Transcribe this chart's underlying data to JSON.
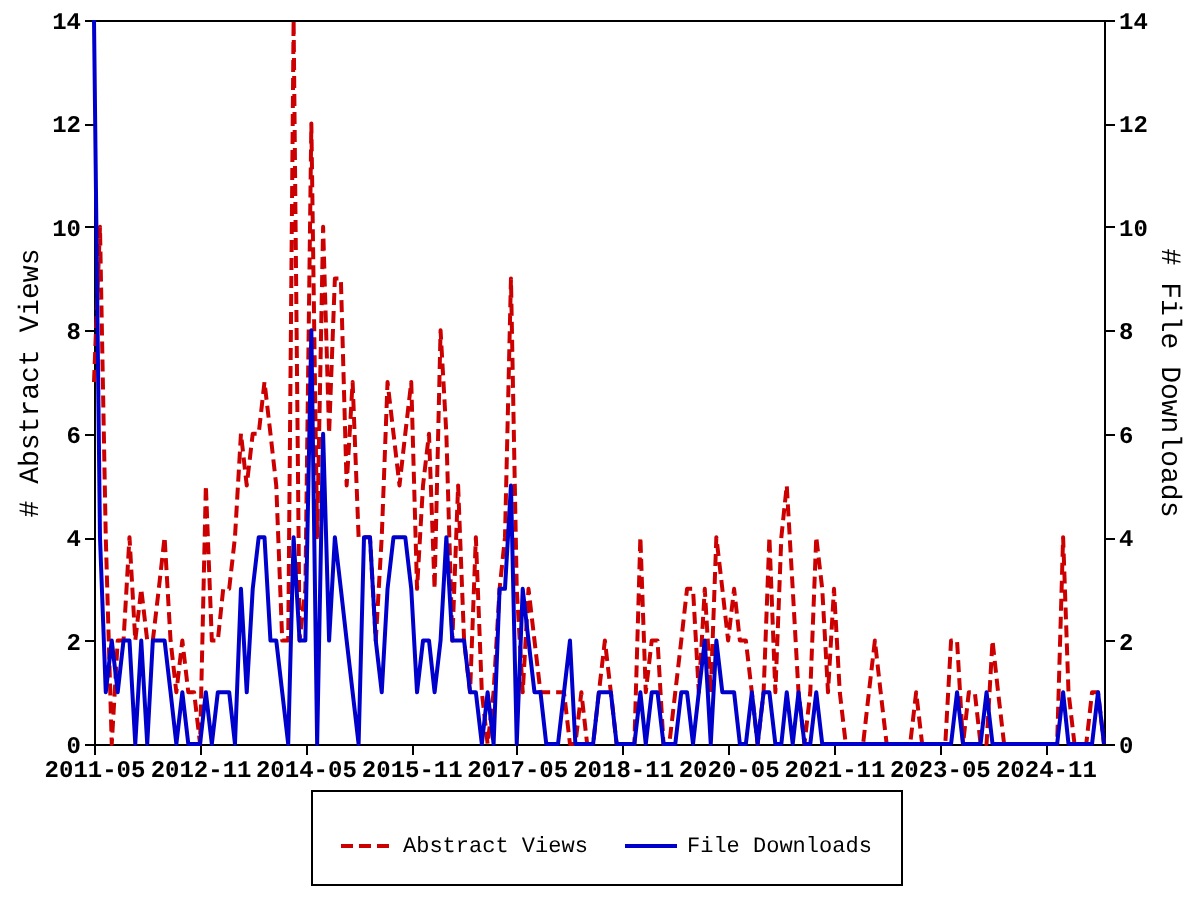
{
  "chart_data": {
    "type": "line",
    "ylabel": "# Abstract Views",
    "y2label": "# File Downloads",
    "xlim": [
      "2011-05",
      "2025-09"
    ],
    "xticks": [
      "2011-05",
      "2012-11",
      "2014-05",
      "2015-11",
      "2017-05",
      "2018-11",
      "2020-05",
      "2021-11",
      "2023-05",
      "2024-11"
    ],
    "ylim": [
      0,
      14
    ],
    "yticks": [
      0,
      2,
      4,
      6,
      8,
      10,
      12,
      14
    ],
    "y2lim": [
      0,
      14
    ],
    "y2ticks": [
      0,
      2,
      4,
      6,
      8,
      10,
      12,
      14
    ],
    "grid": false,
    "legend": "bottom",
    "x": [
      "2011-05",
      "2011-06",
      "2011-07",
      "2011-08",
      "2011-09",
      "2011-10",
      "2011-11",
      "2011-12",
      "2012-01",
      "2012-02",
      "2012-03",
      "2012-04",
      "2012-05",
      "2012-06",
      "2012-07",
      "2012-08",
      "2012-09",
      "2012-10",
      "2012-11",
      "2012-12",
      "2013-01",
      "2013-02",
      "2013-03",
      "2013-04",
      "2013-05",
      "2013-06",
      "2013-07",
      "2013-08",
      "2013-09",
      "2013-10",
      "2013-11",
      "2013-12",
      "2014-01",
      "2014-02",
      "2014-03",
      "2014-04",
      "2014-05",
      "2014-06",
      "2014-07",
      "2014-08",
      "2014-09",
      "2014-10",
      "2014-11",
      "2014-12",
      "2015-01",
      "2015-02",
      "2015-03",
      "2015-04",
      "2015-05",
      "2015-06",
      "2015-07",
      "2015-08",
      "2015-09",
      "2015-10",
      "2015-11",
      "2015-12",
      "2016-01",
      "2016-02",
      "2016-03",
      "2016-04",
      "2016-05",
      "2016-06",
      "2016-07",
      "2016-08",
      "2016-09",
      "2016-10",
      "2016-11",
      "2016-12",
      "2017-01",
      "2017-02",
      "2017-03",
      "2017-04",
      "2017-05",
      "2017-06",
      "2017-07",
      "2017-08",
      "2017-09",
      "2017-10",
      "2017-11",
      "2017-12",
      "2018-01",
      "2018-02",
      "2018-03",
      "2018-04",
      "2018-05",
      "2018-06",
      "2018-07",
      "2018-08",
      "2018-09",
      "2018-10",
      "2018-11",
      "2018-12",
      "2019-01",
      "2019-02",
      "2019-03",
      "2019-04",
      "2019-05",
      "2019-06",
      "2019-07",
      "2019-08",
      "2019-09",
      "2019-10",
      "2019-11",
      "2019-12",
      "2020-01",
      "2020-02",
      "2020-03",
      "2020-04",
      "2020-05",
      "2020-06",
      "2020-07",
      "2020-08",
      "2020-09",
      "2020-10",
      "2020-11",
      "2020-12",
      "2021-01",
      "2021-02",
      "2021-03",
      "2021-04",
      "2021-05",
      "2021-06",
      "2021-07",
      "2021-08",
      "2021-09",
      "2021-10",
      "2021-11",
      "2021-12",
      "2022-01",
      "2022-02",
      "2022-03",
      "2022-04",
      "2022-05",
      "2022-06",
      "2022-07",
      "2022-08",
      "2022-09",
      "2022-10",
      "2022-11",
      "2022-12",
      "2023-01",
      "2023-02",
      "2023-03",
      "2023-04",
      "2023-05",
      "2023-06",
      "2023-07",
      "2023-08",
      "2023-09",
      "2023-10",
      "2023-11",
      "2023-12",
      "2024-01",
      "2024-02",
      "2024-03",
      "2024-04",
      "2024-05",
      "2024-06",
      "2024-07",
      "2024-08",
      "2024-09",
      "2024-10",
      "2024-11",
      "2024-12",
      "2025-01",
      "2025-02",
      "2025-03",
      "2025-04",
      "2025-05",
      "2025-06",
      "2025-07",
      "2025-08",
      "2025-09"
    ],
    "series": [
      {
        "name": "Abstract Views",
        "color": "#cc0000",
        "line_style": "dashed",
        "values": [
          7,
          10,
          4,
          0,
          2,
          2,
          4,
          2,
          3,
          2,
          2,
          3,
          4,
          2,
          1,
          2,
          1,
          1,
          0,
          5,
          2,
          2,
          3,
          3,
          4,
          6,
          5,
          6,
          6,
          7,
          6,
          5,
          2,
          2,
          14,
          2,
          3,
          12,
          4,
          10,
          6,
          9,
          9,
          5,
          7,
          4,
          4,
          4,
          2,
          4,
          7,
          6,
          5,
          6,
          7,
          3,
          5,
          6,
          3,
          8,
          6,
          2,
          5,
          2,
          1,
          4,
          1,
          0,
          1,
          3,
          4,
          9,
          3,
          1,
          3,
          2,
          1,
          1,
          1,
          1,
          1,
          0,
          0,
          1,
          0,
          0,
          1,
          2,
          1,
          0,
          0,
          0,
          0,
          4,
          1,
          2,
          2,
          0,
          0,
          1,
          2,
          3,
          3,
          1,
          3,
          1,
          4,
          3,
          2,
          3,
          2,
          2,
          1,
          0,
          1,
          4,
          1,
          4,
          5,
          3,
          1,
          0,
          1,
          4,
          3,
          1,
          3,
          1,
          0,
          0,
          0,
          0,
          1,
          2,
          1,
          0,
          0,
          0,
          0,
          0,
          1,
          0,
          0,
          0,
          0,
          0,
          2,
          2,
          0,
          1,
          1,
          0,
          0,
          2,
          1,
          0,
          0,
          0,
          0,
          0,
          0,
          0,
          0,
          0,
          0,
          4,
          1,
          0,
          0,
          0,
          1,
          1,
          0
        ]
      },
      {
        "name": "File Downloads",
        "color": "#0000cc",
        "line_style": "solid",
        "axis": "y2",
        "values": [
          14,
          4,
          1,
          2,
          1,
          2,
          2,
          0,
          2,
          0,
          2,
          2,
          2,
          1,
          0,
          1,
          0,
          0,
          0,
          1,
          0,
          1,
          1,
          1,
          0,
          3,
          1,
          3,
          4,
          4,
          2,
          2,
          1,
          0,
          4,
          2,
          2,
          8,
          0,
          6,
          2,
          4,
          3,
          2,
          1,
          0,
          4,
          4,
          2,
          1,
          3,
          4,
          4,
          4,
          3,
          1,
          2,
          2,
          1,
          2,
          4,
          2,
          2,
          2,
          1,
          1,
          0,
          1,
          0,
          3,
          3,
          5,
          0,
          3,
          2,
          1,
          1,
          0,
          0,
          0,
          1,
          2,
          0,
          0,
          0,
          0,
          1,
          1,
          1,
          0,
          0,
          0,
          0,
          1,
          0,
          1,
          1,
          0,
          0,
          0,
          1,
          1,
          0,
          1,
          2,
          0,
          2,
          1,
          1,
          1,
          0,
          0,
          1,
          0,
          1,
          1,
          0,
          0,
          1,
          0,
          1,
          0,
          0,
          1,
          0,
          0,
          0,
          0,
          0,
          0,
          0,
          0,
          0,
          0,
          0,
          0,
          0,
          0,
          0,
          0,
          0,
          0,
          0,
          0,
          0,
          0,
          0,
          1,
          0,
          0,
          0,
          0,
          1,
          0,
          0,
          0,
          0,
          0,
          0,
          0,
          0,
          0,
          0,
          0,
          0,
          1,
          0,
          0,
          0,
          0,
          0,
          1,
          0
        ]
      }
    ]
  }
}
